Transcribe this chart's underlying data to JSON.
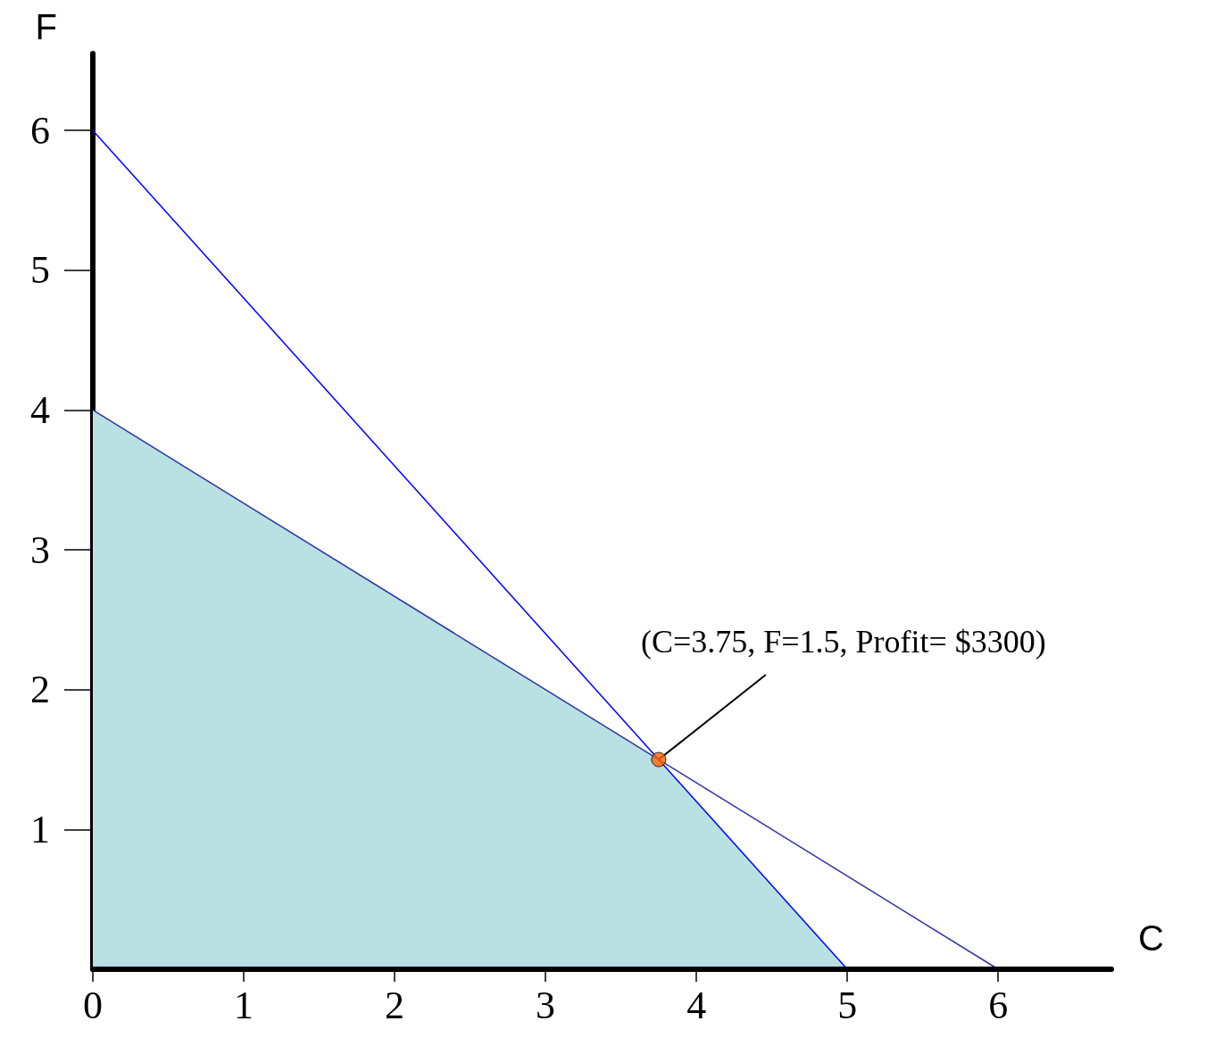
{
  "chart_data": {
    "type": "line",
    "xlabel": "C",
    "ylabel": "F",
    "xlim": [
      0,
      6.75
    ],
    "ylim": [
      0,
      6.55
    ],
    "xticks": [
      0,
      1,
      2,
      3,
      4,
      5,
      6
    ],
    "yticks": [
      1,
      2,
      3,
      4,
      5,
      6
    ],
    "grid": false,
    "series": [
      {
        "type": "area",
        "color": "#b9e0e3",
        "x": [
          0,
          3.75,
          5
        ],
        "values": [
          4,
          1.5,
          0
        ]
      },
      {
        "type": "line",
        "color": "#0000ff",
        "x": [
          0,
          5
        ],
        "values": [
          6,
          0
        ]
      },
      {
        "type": "line",
        "color": "#3333aa",
        "x": [
          0,
          6
        ],
        "values": [
          4,
          0
        ]
      },
      {
        "type": "scatter",
        "color": "#ff6600",
        "x": [
          3.75
        ],
        "values": [
          1.5
        ]
      }
    ],
    "annotations": [
      {
        "text": "(C=3.75, F=1.5, Profit= $3300)",
        "x": 3.75,
        "y": 1.5
      }
    ]
  }
}
